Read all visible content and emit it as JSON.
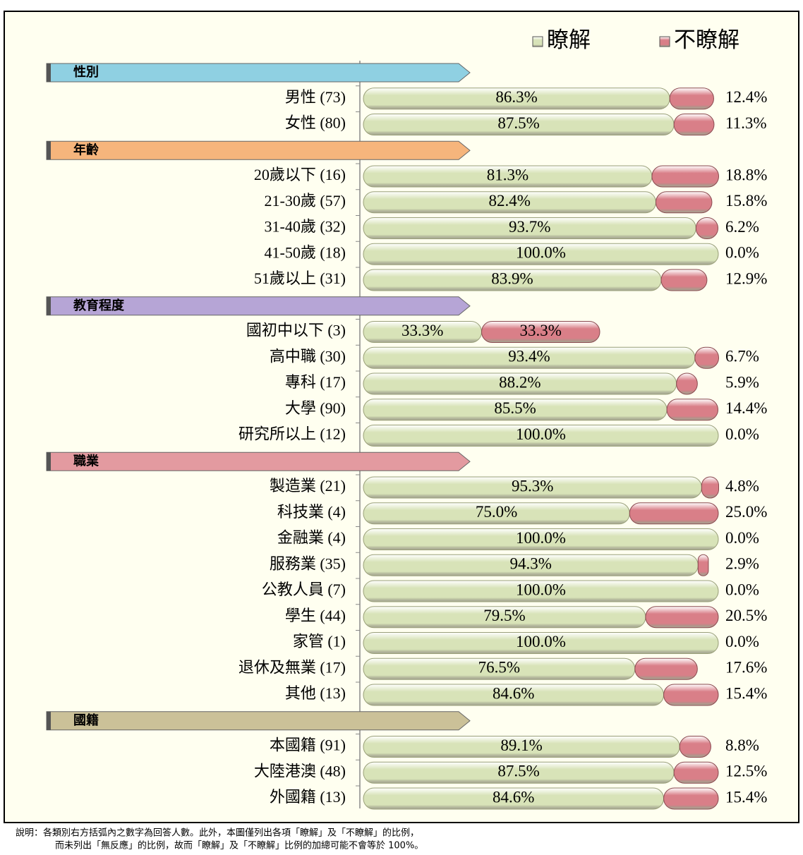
{
  "chart_data": {
    "type": "bar",
    "orientation": "horizontal",
    "stacked": true,
    "xlim": [
      0,
      100
    ],
    "series": [
      {
        "name": "瞭解",
        "color": "#d8e3b8",
        "values": [
          86.3,
          87.5,
          81.3,
          82.4,
          93.7,
          100.0,
          83.9,
          33.3,
          93.4,
          88.2,
          85.5,
          100.0,
          95.3,
          75.0,
          100.0,
          94.3,
          100.0,
          79.5,
          100.0,
          76.5,
          84.6,
          89.1,
          87.5,
          84.6
        ],
        "value_labels": [
          "86.3%",
          "87.5%",
          "81.3%",
          "82.4%",
          "93.7%",
          "100.0%",
          "83.9%",
          "33.3%",
          "93.4%",
          "88.2%",
          "85.5%",
          "100.0%",
          "95.3%",
          "75.0%",
          "100.0%",
          "94.3%",
          "100.0%",
          "79.5%",
          "100.0%",
          "76.5%",
          "84.6%",
          "89.1%",
          "87.5%",
          "84.6%"
        ]
      },
      {
        "name": "不瞭解",
        "color": "#d97f88",
        "values": [
          12.4,
          11.3,
          18.8,
          15.8,
          6.2,
          0.0,
          12.9,
          33.3,
          6.7,
          5.9,
          14.4,
          0.0,
          4.8,
          25.0,
          0.0,
          2.9,
          0.0,
          20.5,
          0.0,
          17.6,
          15.4,
          8.8,
          12.5,
          15.4
        ],
        "value_labels": [
          "12.4%",
          "11.3%",
          "18.8%",
          "15.8%",
          "6.2%",
          "0.0%",
          "12.9%",
          "33.3%",
          "6.7%",
          "5.9%",
          "14.4%",
          "0.0%",
          "4.8%",
          "25.0%",
          "0.0%",
          "2.9%",
          "0.0%",
          "20.5%",
          "0.0%",
          "17.6%",
          "15.4%",
          "8.8%",
          "12.5%",
          "15.4%"
        ]
      }
    ],
    "groups": [
      {
        "name": "性別",
        "color": "#8fd0e2",
        "categories": [
          "男性 (73)",
          "女性 (80)"
        ]
      },
      {
        "name": "年齡",
        "color": "#f6b57c",
        "categories": [
          "20歲以下 (16)",
          "21-30歲 (57)",
          "31-40歲 (32)",
          "41-50歲 (18)",
          "51歲以上 (31)"
        ]
      },
      {
        "name": "教育程度",
        "color": "#b6a5d6",
        "categories": [
          "國初中以下 (3)",
          "高中職 (30)",
          "專科 (17)",
          "大學 (90)",
          "研究所以上 (12)"
        ]
      },
      {
        "name": "職業",
        "color": "#e39aa0",
        "categories": [
          "製造業 (21)",
          "科技業 (4)",
          "金融業 (4)",
          "服務業 (35)",
          "公教人員 (7)",
          "學生 (44)",
          "家管 (1)",
          "退休及無業 (17)",
          "其他 (13)"
        ]
      },
      {
        "name": "國籍",
        "color": "#cbc198",
        "categories": [
          "本國籍 (91)",
          "大陸港澳 (48)",
          "外國籍 (13)"
        ]
      }
    ],
    "footnote": [
      "說明：各類別右方括弧內之數字為回答人數。此外，本圖僅列出各項「瞭解」及「不瞭解」的比例，",
      "而未列出「無反應」的比例，故而「瞭解」及「不瞭解」比例的加總可能不會等於 100%。"
    ]
  }
}
